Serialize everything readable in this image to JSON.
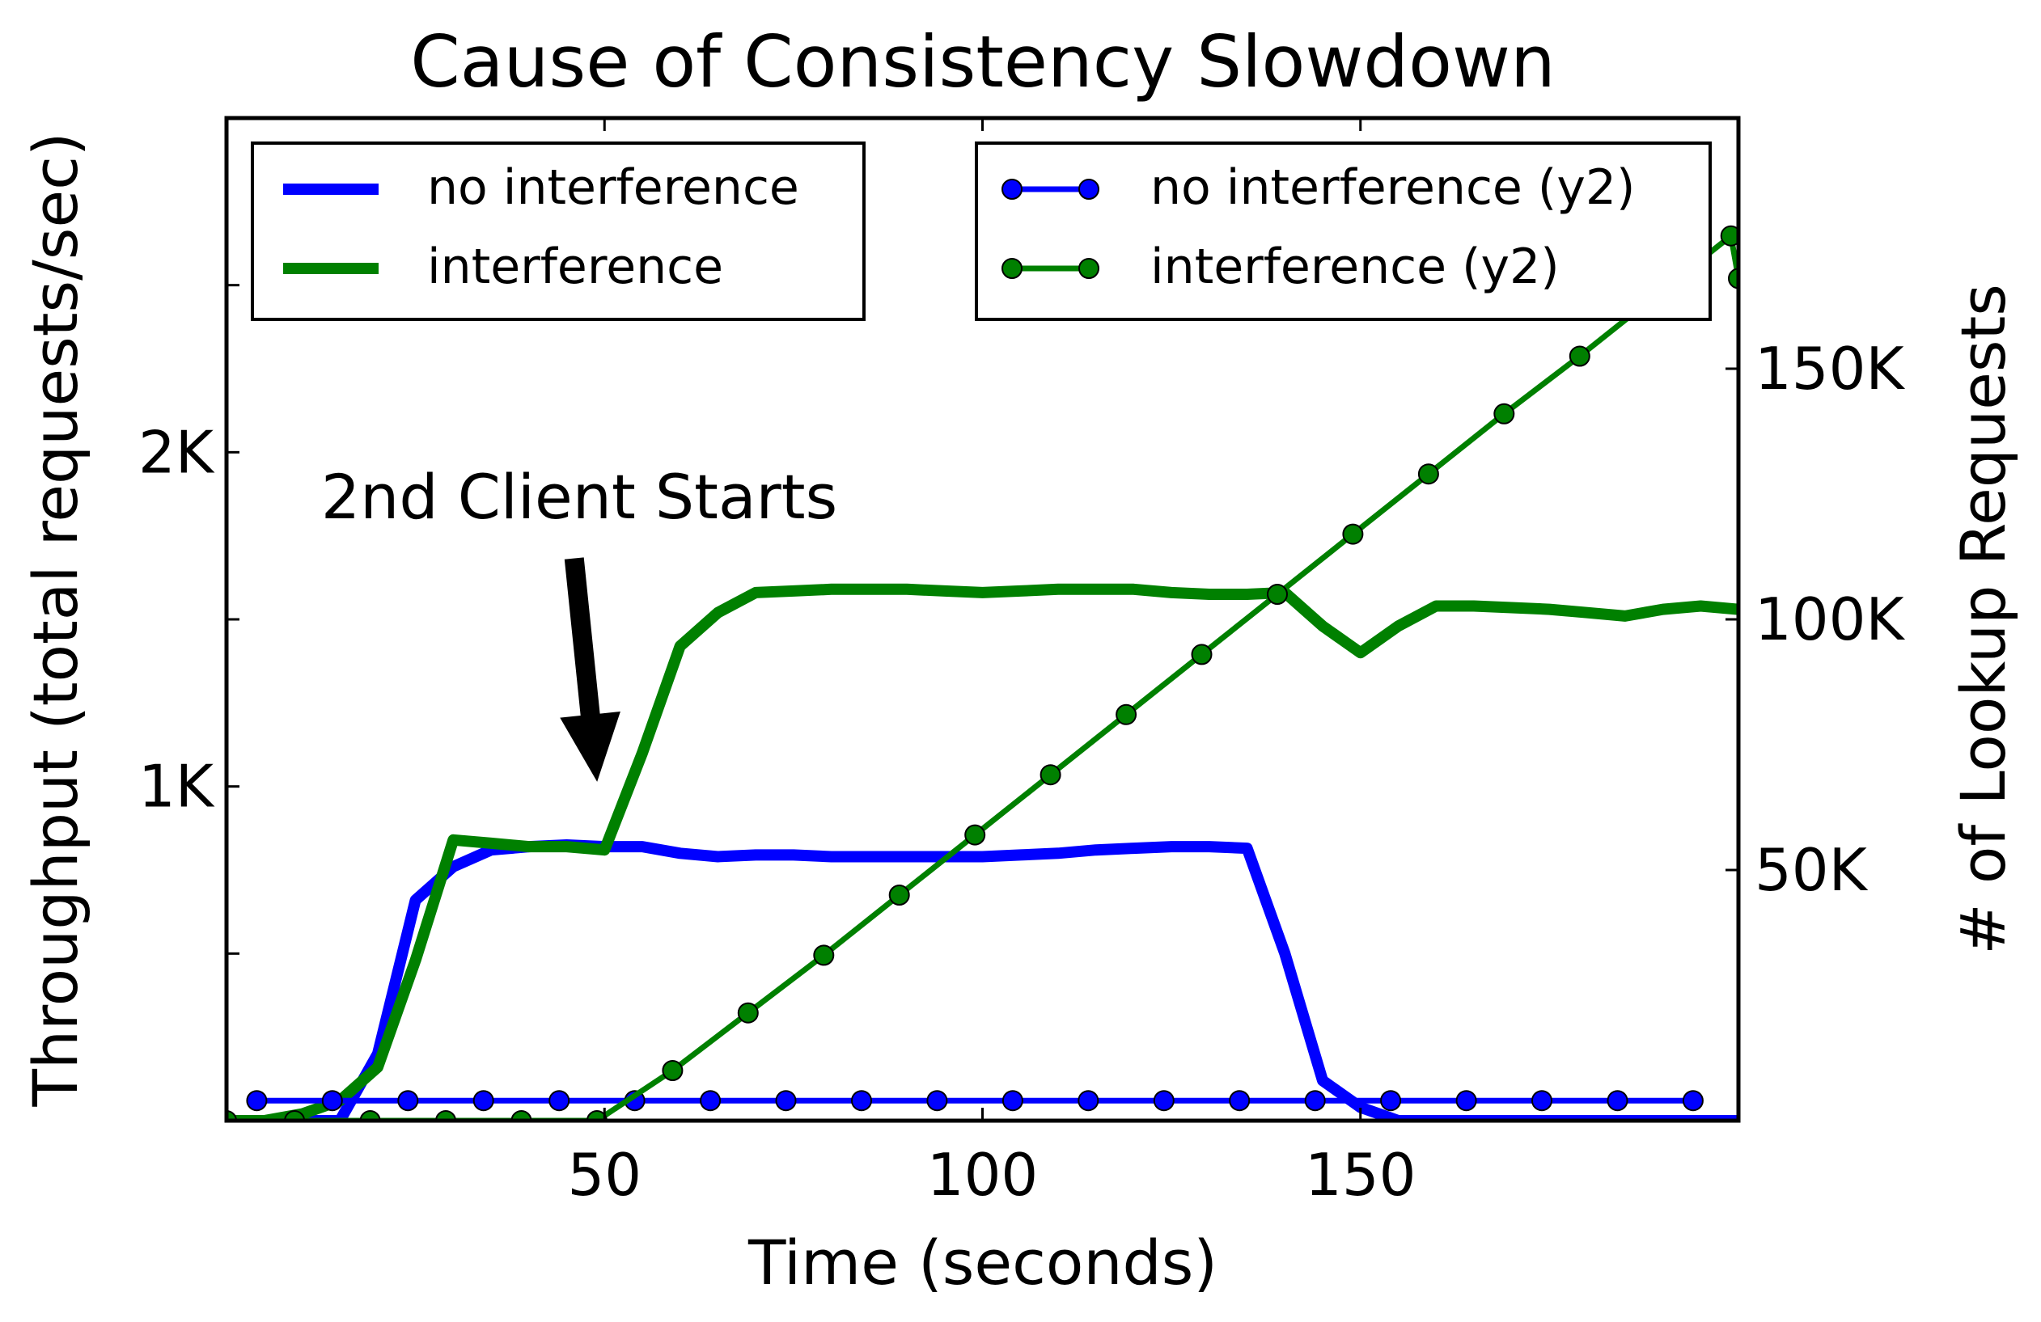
{
  "chart_data": {
    "type": "line",
    "title": "Cause of Consistency Slowdown",
    "xlabel": "Time (seconds)",
    "ylabel": "Throughput (total requests/sec)",
    "y2label": "# of Lookup Requests",
    "xlim": [
      0,
      200
    ],
    "ylim": [
      0,
      3000
    ],
    "y2lim": [
      0,
      200000
    ],
    "xticks": [
      50,
      100,
      150
    ],
    "xtick_labels": [
      "50",
      "100",
      "150"
    ],
    "yticks": [
      1000,
      2000
    ],
    "ytick_labels": [
      "1K",
      "2K"
    ],
    "y_minor_ticks": [
      500,
      1500,
      2500
    ],
    "y2ticks": [
      50000,
      100000,
      150000
    ],
    "y2tick_labels": [
      "50K",
      "100K",
      "150K"
    ],
    "grid": false,
    "annotation": {
      "text": "2nd Client Starts",
      "arrow_from": [
        46,
        1680
      ],
      "arrow_to": [
        49,
        1020
      ]
    },
    "legend_left": {
      "placement": "top-left",
      "entries": [
        {
          "label": "no interference",
          "series": 0
        },
        {
          "label": "interference",
          "series": 1
        }
      ]
    },
    "legend_right": {
      "placement": "top-right",
      "entries": [
        {
          "label": "no interference (y2)",
          "series": 2
        },
        {
          "label": "interference (y2)",
          "series": 3
        }
      ]
    },
    "series": [
      {
        "name": "no interference",
        "axis": "y",
        "color": "#0000ff",
        "marker": false,
        "width": 14,
        "x": [
          0,
          5,
          10,
          15,
          20,
          25,
          30,
          35,
          40,
          45,
          50,
          55,
          60,
          65,
          70,
          75,
          80,
          85,
          90,
          95,
          100,
          105,
          110,
          115,
          120,
          125,
          130,
          135,
          140,
          145,
          150,
          155,
          160,
          165,
          170,
          175,
          180,
          185,
          190,
          195,
          200
        ],
        "y": [
          0,
          0,
          0,
          0,
          200,
          660,
          760,
          810,
          820,
          825,
          820,
          820,
          800,
          790,
          795,
          795,
          790,
          790,
          790,
          790,
          790,
          795,
          800,
          810,
          815,
          820,
          820,
          815,
          500,
          120,
          40,
          0,
          0,
          0,
          0,
          0,
          0,
          0,
          0,
          0,
          0
        ]
      },
      {
        "name": "interference",
        "axis": "y",
        "color": "#008000",
        "marker": false,
        "width": 14,
        "x": [
          0,
          5,
          10,
          15,
          20,
          25,
          30,
          35,
          40,
          45,
          50,
          55,
          60,
          65,
          70,
          75,
          80,
          85,
          90,
          95,
          100,
          105,
          110,
          115,
          120,
          125,
          130,
          135,
          140,
          145,
          150,
          155,
          160,
          165,
          170,
          175,
          180,
          185,
          190,
          195,
          200
        ],
        "y": [
          0,
          0,
          20,
          60,
          160,
          480,
          840,
          830,
          820,
          820,
          810,
          1100,
          1420,
          1520,
          1580,
          1585,
          1590,
          1590,
          1590,
          1585,
          1580,
          1585,
          1590,
          1590,
          1590,
          1580,
          1575,
          1575,
          1580,
          1480,
          1400,
          1480,
          1540,
          1540,
          1535,
          1530,
          1520,
          1510,
          1530,
          1540,
          1530
        ]
      },
      {
        "name": "no interference (y2)",
        "axis": "y2",
        "color": "#0000ff",
        "marker": true,
        "width": 7,
        "x": [
          4,
          14,
          24,
          34,
          44,
          54,
          64,
          74,
          84,
          94,
          104,
          114,
          124,
          134,
          144,
          154,
          164,
          174,
          184,
          194
        ],
        "y": [
          4000,
          4000,
          4000,
          4000,
          4000,
          4000,
          4000,
          4000,
          4000,
          4000,
          4000,
          4000,
          4000,
          4000,
          4000,
          4000,
          4000,
          4000,
          4000,
          4000
        ]
      },
      {
        "name": "interference (y2)",
        "axis": "y2",
        "color": "#008000",
        "marker": true,
        "width": 7,
        "x": [
          0,
          9,
          19,
          29,
          39,
          49,
          59,
          69,
          79,
          89,
          99,
          109,
          119,
          129,
          139,
          149,
          159,
          169,
          179,
          189,
          199,
          200
        ],
        "y": [
          0,
          0,
          0,
          0,
          0,
          0,
          10000,
          21500,
          33000,
          45000,
          57000,
          69000,
          81000,
          93000,
          105000,
          117000,
          129000,
          141000,
          152500,
          164500,
          176500,
          168000
        ]
      }
    ]
  }
}
